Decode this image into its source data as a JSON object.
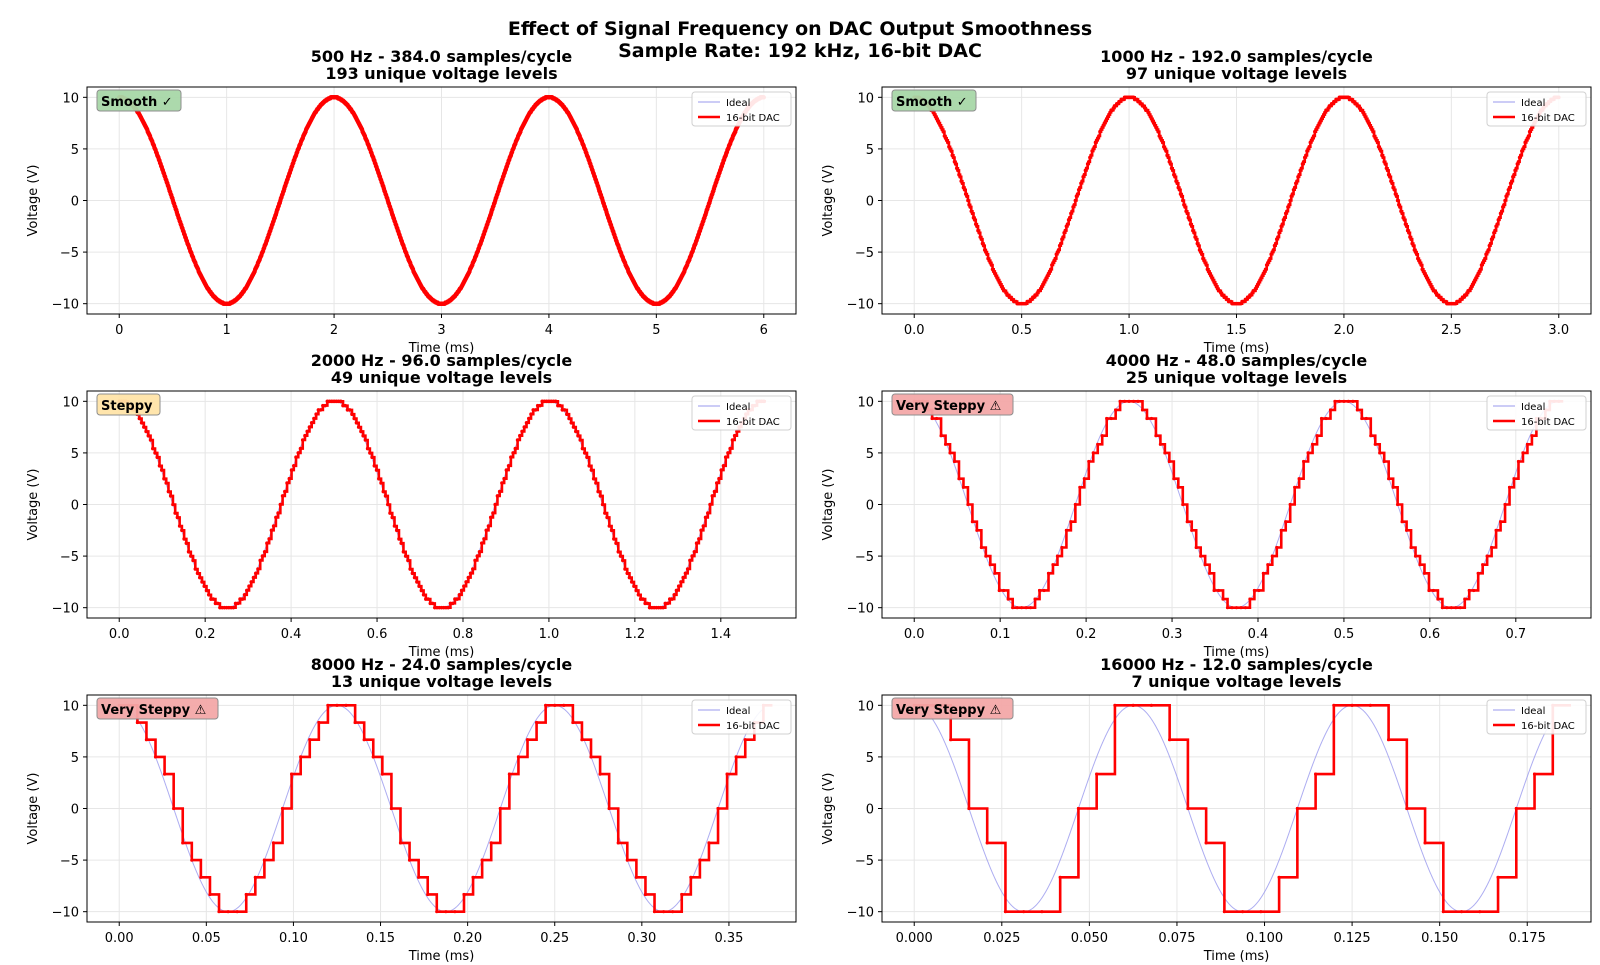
{
  "figure": {
    "title_line1": "Effect of Signal Frequency on DAC Output Smoothness",
    "title_line2": "Sample Rate: 192 kHz, 16-bit DAC"
  },
  "colors": {
    "ideal": "#9999ee",
    "dac": "#ff0000",
    "smooth_badge": "#a8d8a8",
    "steppy_badge": "#ffe4a8",
    "very_steppy_badge": "#f4a8a8",
    "grid": "#e6e6e6"
  },
  "chart_data": [
    {
      "type": "line",
      "frequency_hz": 500,
      "samples_per_cycle": 384,
      "dac_levels": 193,
      "title_line1": "500 Hz - 384.0 samples/cycle",
      "title_line2": "193 unique voltage levels",
      "xlabel": "Time (ms)",
      "ylabel": "Voltage (V)",
      "xlim": [
        -0.3,
        6.3
      ],
      "ylim": [
        -11,
        11
      ],
      "xticks": [
        0,
        1,
        2,
        3,
        4,
        5,
        6
      ],
      "xtick_labels": [
        "0",
        "1",
        "2",
        "3",
        "4",
        "5",
        "6"
      ],
      "yticks": [
        10,
        5,
        0,
        -5,
        -10
      ],
      "ytick_labels": [
        "10",
        "5",
        "0",
        "−5",
        "−10"
      ],
      "series": [
        {
          "name": "Ideal",
          "function": "10*cos(2*pi*500*t)",
          "t_range_ms": [
            0,
            6
          ]
        },
        {
          "name": "16-bit DAC",
          "style": "step"
        }
      ],
      "badge": {
        "label": "Smooth ✓",
        "kind": "smooth"
      },
      "legend": {
        "position": "top-right",
        "ideal": "Ideal",
        "dac": "16-bit DAC"
      },
      "grid": true
    },
    {
      "type": "line",
      "frequency_hz": 1000,
      "samples_per_cycle": 192,
      "dac_levels": 97,
      "title_line1": "1000 Hz - 192.0 samples/cycle",
      "title_line2": "97 unique voltage levels",
      "xlabel": "Time (ms)",
      "ylabel": "Voltage (V)",
      "xlim": [
        -0.15,
        3.15
      ],
      "ylim": [
        -11,
        11
      ],
      "xticks": [
        0,
        0.5,
        1,
        1.5,
        2,
        2.5,
        3
      ],
      "xtick_labels": [
        "0.0",
        "0.5",
        "1.0",
        "1.5",
        "2.0",
        "2.5",
        "3.0"
      ],
      "yticks": [
        10,
        5,
        0,
        -5,
        -10
      ],
      "ytick_labels": [
        "10",
        "5",
        "0",
        "−5",
        "−10"
      ],
      "series": [
        {
          "name": "Ideal",
          "function": "10*cos(2*pi*1000*t)",
          "t_range_ms": [
            0,
            3
          ]
        },
        {
          "name": "16-bit DAC",
          "style": "step"
        }
      ],
      "badge": {
        "label": "Smooth ✓",
        "kind": "smooth"
      },
      "legend": {
        "position": "top-right",
        "ideal": "Ideal",
        "dac": "16-bit DAC"
      },
      "grid": true
    },
    {
      "type": "line",
      "frequency_hz": 2000,
      "samples_per_cycle": 96,
      "dac_levels": 49,
      "title_line1": "2000 Hz - 96.0 samples/cycle",
      "title_line2": "49 unique voltage levels",
      "xlabel": "Time (ms)",
      "ylabel": "Voltage (V)",
      "xlim": [
        -0.075,
        1.575
      ],
      "ylim": [
        -11,
        11
      ],
      "xticks": [
        0,
        0.2,
        0.4,
        0.6,
        0.8,
        1.0,
        1.2,
        1.4
      ],
      "xtick_labels": [
        "0.0",
        "0.2",
        "0.4",
        "0.6",
        "0.8",
        "1.0",
        "1.2",
        "1.4"
      ],
      "yticks": [
        10,
        5,
        0,
        -5,
        -10
      ],
      "ytick_labels": [
        "10",
        "5",
        "0",
        "−5",
        "−10"
      ],
      "series": [
        {
          "name": "Ideal",
          "function": "10*cos(2*pi*2000*t)",
          "t_range_ms": [
            0,
            1.5
          ]
        },
        {
          "name": "16-bit DAC",
          "style": "step"
        }
      ],
      "badge": {
        "label": "Steppy",
        "kind": "steppy"
      },
      "legend": {
        "position": "top-right",
        "ideal": "Ideal",
        "dac": "16-bit DAC"
      },
      "grid": true
    },
    {
      "type": "line",
      "frequency_hz": 4000,
      "samples_per_cycle": 48,
      "dac_levels": 25,
      "title_line1": "4000 Hz - 48.0 samples/cycle",
      "title_line2": "25 unique voltage levels",
      "xlabel": "Time (ms)",
      "ylabel": "Voltage (V)",
      "xlim": [
        -0.0375,
        0.7875
      ],
      "ylim": [
        -11,
        11
      ],
      "xticks": [
        0,
        0.1,
        0.2,
        0.3,
        0.4,
        0.5,
        0.6,
        0.7
      ],
      "xtick_labels": [
        "0.0",
        "0.1",
        "0.2",
        "0.3",
        "0.4",
        "0.5",
        "0.6",
        "0.7"
      ],
      "yticks": [
        10,
        5,
        0,
        -5,
        -10
      ],
      "ytick_labels": [
        "10",
        "5",
        "0",
        "−5",
        "−10"
      ],
      "series": [
        {
          "name": "Ideal",
          "function": "10*cos(2*pi*4000*t)",
          "t_range_ms": [
            0,
            0.75
          ]
        },
        {
          "name": "16-bit DAC",
          "style": "step"
        }
      ],
      "badge": {
        "label": "Very Steppy ⚠",
        "kind": "very_steppy"
      },
      "legend": {
        "position": "top-right",
        "ideal": "Ideal",
        "dac": "16-bit DAC"
      },
      "grid": true
    },
    {
      "type": "line",
      "frequency_hz": 8000,
      "samples_per_cycle": 24,
      "dac_levels": 13,
      "title_line1": "8000 Hz - 24.0 samples/cycle",
      "title_line2": "13 unique voltage levels",
      "xlabel": "Time (ms)",
      "ylabel": "Voltage (V)",
      "xlim": [
        -0.0185,
        0.3885
      ],
      "ylim": [
        -11,
        11
      ],
      "xticks": [
        0,
        0.05,
        0.1,
        0.15,
        0.2,
        0.25,
        0.3,
        0.35
      ],
      "xtick_labels": [
        "0.00",
        "0.05",
        "0.10",
        "0.15",
        "0.20",
        "0.25",
        "0.30",
        "0.35"
      ],
      "yticks": [
        10,
        5,
        0,
        -5,
        -10
      ],
      "ytick_labels": [
        "10",
        "5",
        "0",
        "−5",
        "−10"
      ],
      "series": [
        {
          "name": "Ideal",
          "function": "10*cos(2*pi*8000*t)",
          "t_range_ms": [
            0,
            0.37
          ]
        },
        {
          "name": "16-bit DAC",
          "style": "step"
        }
      ],
      "badge": {
        "label": "Very Steppy ⚠",
        "kind": "very_steppy"
      },
      "legend": {
        "position": "top-right",
        "ideal": "Ideal",
        "dac": "16-bit DAC"
      },
      "grid": true
    },
    {
      "type": "line",
      "frequency_hz": 16000,
      "samples_per_cycle": 12,
      "dac_levels": 7,
      "title_line1": "16000 Hz - 12.0 samples/cycle",
      "title_line2": "7 unique voltage levels",
      "xlabel": "Time (ms)",
      "ylabel": "Voltage (V)",
      "xlim": [
        -0.0092,
        0.1932
      ],
      "ylim": [
        -11,
        11
      ],
      "xticks": [
        0,
        0.025,
        0.05,
        0.075,
        0.1,
        0.125,
        0.15,
        0.175
      ],
      "xtick_labels": [
        "0.000",
        "0.025",
        "0.050",
        "0.075",
        "0.100",
        "0.125",
        "0.150",
        "0.175"
      ],
      "yticks": [
        10,
        5,
        0,
        -5,
        -10
      ],
      "ytick_labels": [
        "10",
        "5",
        "0",
        "−5",
        "−10"
      ],
      "series": [
        {
          "name": "Ideal",
          "function": "10*cos(2*pi*16000*t)",
          "t_range_ms": [
            0,
            0.1823
          ]
        },
        {
          "name": "16-bit DAC",
          "style": "step"
        }
      ],
      "badge": {
        "label": "Very Steppy ⚠",
        "kind": "very_steppy"
      },
      "legend": {
        "position": "top-right",
        "ideal": "Ideal",
        "dac": "16-bit DAC"
      },
      "grid": true
    }
  ]
}
